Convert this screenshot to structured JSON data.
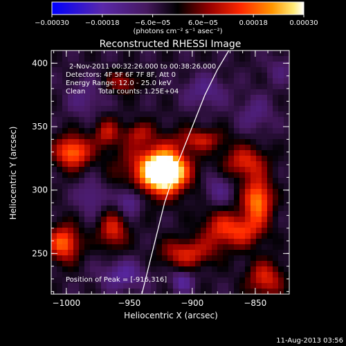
{
  "chart_data": {
    "type": "heatmap",
    "title": "Reconstructed RHESSI Image",
    "xlabel": "Heliocentric X (arcsec)",
    "ylabel": "Heliocentric Y (arcsec)",
    "xlim": [
      -1012,
      -823
    ],
    "ylim": [
      218,
      410
    ],
    "x_ticks": [
      -1000,
      -950,
      -900,
      -850
    ],
    "y_ticks": [
      250,
      300,
      350,
      400
    ],
    "x_tick_labels": [
      "−1000",
      "−950",
      "−900",
      "−850"
    ],
    "y_tick_labels": [
      "250",
      "300",
      "350",
      "400"
    ],
    "colorbar": {
      "range": [
        -0.0003,
        0.0003
      ],
      "ticks": [
        -0.0003,
        -0.00018,
        -6e-05,
        6e-05,
        0.00018,
        0.0003
      ],
      "tick_labels": [
        "−0.00030",
        "−0.00018",
        "−6.0e−05",
        "6.0e−05",
        "0.00018",
        "0.00030"
      ],
      "units": "(photons cm⁻² s⁻¹ asec⁻²)",
      "colors": [
        "#0000ff",
        "#5a2fa0",
        "#000000",
        "#b00000",
        "#ff3300",
        "#ffa500",
        "#ffffff"
      ]
    },
    "annotations": {
      "time_range": "2-Nov-2011 00:32:26.000 to 00:38:26.000",
      "detectors": "Detectors: 4F 5F 6F 7F 8F, Att 0",
      "energy": "Energy Range: 12.0 - 25.0 keV",
      "method": "Clean",
      "counts": "Total counts: 1.25E+04",
      "peak": "Position of Peak = [-916,316]"
    },
    "peak": {
      "x": -916,
      "y": 316
    },
    "sources": [
      {
        "x": -922,
        "y": 314,
        "amp": 1.35,
        "sx": 11,
        "sy": 10
      },
      {
        "x": -930,
        "y": 318,
        "amp": 0.55,
        "sx": 20,
        "sy": 16
      },
      {
        "x": -848,
        "y": 292,
        "amp": 0.85,
        "sx": 8,
        "sy": 12
      },
      {
        "x": -858,
        "y": 322,
        "amp": 0.55,
        "sx": 12,
        "sy": 9
      },
      {
        "x": -860,
        "y": 268,
        "amp": 0.55,
        "sx": 12,
        "sy": 9
      },
      {
        "x": -842,
        "y": 230,
        "amp": 0.55,
        "sx": 10,
        "sy": 10
      },
      {
        "x": -905,
        "y": 250,
        "amp": 0.55,
        "sx": 14,
        "sy": 8
      },
      {
        "x": -880,
        "y": 270,
        "amp": 0.4,
        "sx": 10,
        "sy": 12
      },
      {
        "x": -893,
        "y": 340,
        "amp": 0.45,
        "sx": 13,
        "sy": 6
      },
      {
        "x": -995,
        "y": 330,
        "amp": 0.8,
        "sx": 10,
        "sy": 9
      },
      {
        "x": -1002,
        "y": 258,
        "amp": 0.75,
        "sx": 9,
        "sy": 10
      },
      {
        "x": -963,
        "y": 268,
        "amp": 0.55,
        "sx": 8,
        "sy": 10
      },
      {
        "x": -968,
        "y": 345,
        "amp": 0.45,
        "sx": 7,
        "sy": 8
      },
      {
        "x": -955,
        "y": 385,
        "amp": 0.4,
        "sx": 9,
        "sy": 6
      },
      {
        "x": -943,
        "y": 345,
        "amp": 0.35,
        "sx": 8,
        "sy": 6
      },
      {
        "x": -980,
        "y": 295,
        "amp": -0.3,
        "sx": 8,
        "sy": 10
      },
      {
        "x": -950,
        "y": 292,
        "amp": -0.45,
        "sx": 7,
        "sy": 8
      },
      {
        "x": -985,
        "y": 372,
        "amp": -0.25,
        "sx": 10,
        "sy": 10
      },
      {
        "x": -955,
        "y": 233,
        "amp": -0.4,
        "sx": 12,
        "sy": 8
      },
      {
        "x": -908,
        "y": 228,
        "amp": -0.4,
        "sx": 6,
        "sy": 6
      },
      {
        "x": -880,
        "y": 300,
        "amp": -0.3,
        "sx": 8,
        "sy": 10
      },
      {
        "x": -890,
        "y": 378,
        "amp": -0.3,
        "sx": 12,
        "sy": 9
      },
      {
        "x": -850,
        "y": 360,
        "amp": -0.25,
        "sx": 10,
        "sy": 10
      },
      {
        "x": -830,
        "y": 395,
        "amp": -0.2,
        "sx": 8,
        "sy": 8
      }
    ],
    "background_level": -0.12,
    "limb_curve": [
      [
        -940,
        218
      ],
      [
        -932,
        250
      ],
      [
        -922,
        290
      ],
      [
        -912,
        320
      ],
      [
        -900,
        350
      ],
      [
        -890,
        375
      ],
      [
        -880,
        395
      ],
      [
        -871,
        410
      ]
    ]
  },
  "footer_date": "11-Aug-2013 03:56"
}
